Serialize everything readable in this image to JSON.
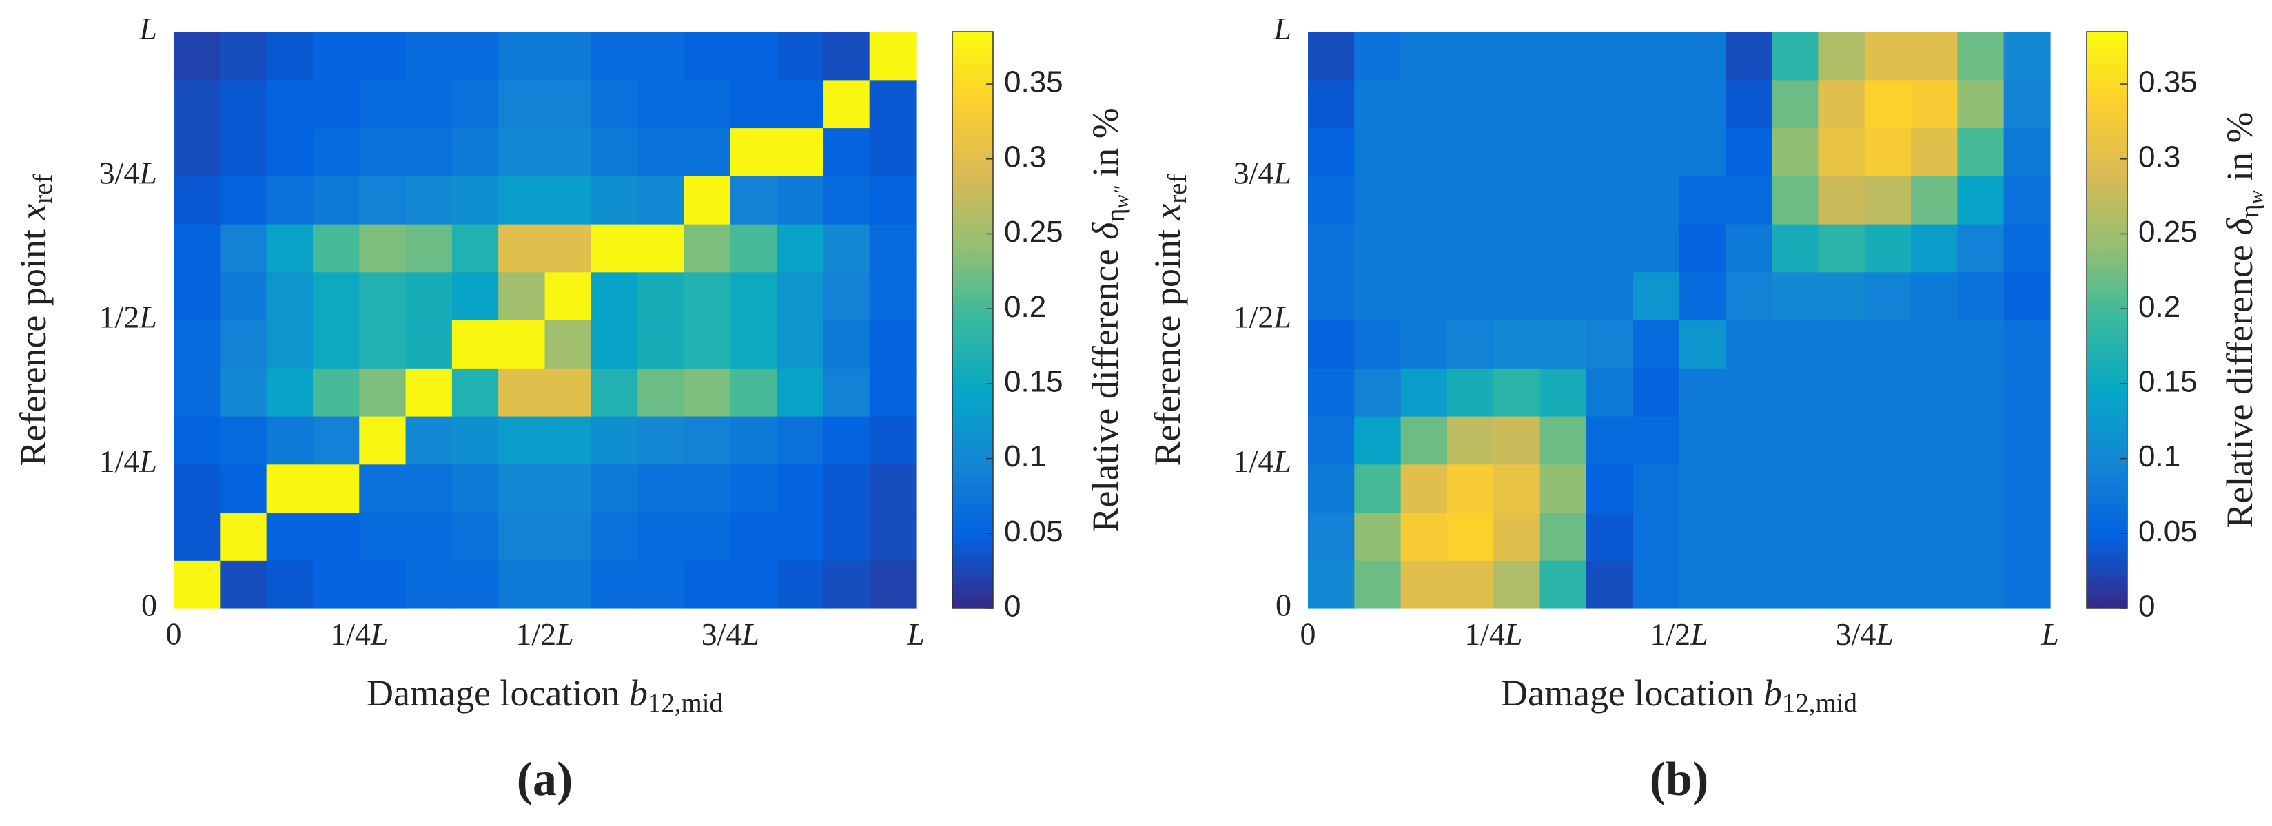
{
  "chart_data": [
    {
      "type": "heatmap",
      "panel": "(a)",
      "xlabel": {
        "text": "Damage location ",
        "symbol": "b",
        "subscript": "12,mid"
      },
      "ylabel": {
        "text": "Reference point ",
        "symbol": "x",
        "subscript": "ref"
      },
      "colorbar_label": {
        "text": "Relative difference ",
        "symbol": "δ",
        "subscript": "η",
        "subsubscript": "w″",
        "suffix": " in %"
      },
      "xlim": [
        0,
        1
      ],
      "ylim": [
        0,
        1
      ],
      "xticks": [
        0,
        {
          "value": 0.25,
          "label": "1/4L"
        },
        {
          "value": 0.5,
          "label": "1/2L"
        },
        {
          "value": 0.75,
          "label": "3/4L"
        },
        {
          "value": 1,
          "label": "L"
        }
      ],
      "yticks": [
        0,
        {
          "value": 0.25,
          "label": "1/4L"
        },
        {
          "value": 0.5,
          "label": "1/2L"
        },
        {
          "value": 0.75,
          "label": "3/4L"
        },
        {
          "value": 1,
          "label": "L"
        }
      ],
      "clim": [
        0,
        0.385
      ],
      "cticks": [
        0,
        0.05,
        0.1,
        0.15,
        0.2,
        0.25,
        0.3,
        0.35
      ],
      "colormap": "parula",
      "x": [
        0.03125,
        0.09375,
        0.15625,
        0.21875,
        0.28125,
        0.34375,
        0.40625,
        0.46875,
        0.53125,
        0.59375,
        0.65625,
        0.71875,
        0.78125,
        0.84375,
        0.90625,
        0.96875
      ],
      "y": [
        0.0417,
        0.125,
        0.2083,
        0.2917,
        0.375,
        0.4583,
        0.5417,
        0.625,
        0.7083,
        0.7917,
        0.875,
        0.9583
      ],
      "z": [
        [
          0.38,
          0.03,
          0.04,
          0.05,
          0.05,
          0.06,
          0.06,
          0.08,
          0.08,
          0.06,
          0.06,
          0.05,
          0.05,
          0.04,
          0.03,
          0.02
        ],
        [
          0.04,
          0.38,
          0.05,
          0.05,
          0.06,
          0.06,
          0.07,
          0.09,
          0.09,
          0.07,
          0.06,
          0.06,
          0.05,
          0.05,
          0.04,
          0.03
        ],
        [
          0.04,
          0.05,
          0.38,
          0.38,
          0.07,
          0.07,
          0.08,
          0.1,
          0.1,
          0.08,
          0.07,
          0.07,
          0.06,
          0.05,
          0.04,
          0.03
        ],
        [
          0.05,
          0.06,
          0.08,
          0.09,
          0.38,
          0.1,
          0.11,
          0.13,
          0.13,
          0.11,
          0.1,
          0.09,
          0.08,
          0.07,
          0.05,
          0.04
        ],
        [
          0.06,
          0.1,
          0.14,
          0.2,
          0.23,
          0.38,
          0.17,
          0.3,
          0.3,
          0.17,
          0.22,
          0.23,
          0.2,
          0.14,
          0.09,
          0.05
        ],
        [
          0.06,
          0.09,
          0.12,
          0.15,
          0.17,
          0.16,
          0.38,
          0.38,
          0.25,
          0.14,
          0.16,
          0.17,
          0.15,
          0.12,
          0.08,
          0.05
        ],
        [
          0.05,
          0.08,
          0.12,
          0.15,
          0.17,
          0.16,
          0.14,
          0.25,
          0.38,
          0.14,
          0.16,
          0.17,
          0.15,
          0.12,
          0.09,
          0.06
        ],
        [
          0.05,
          0.09,
          0.14,
          0.2,
          0.23,
          0.22,
          0.17,
          0.3,
          0.3,
          0.38,
          0.38,
          0.23,
          0.2,
          0.14,
          0.1,
          0.06
        ],
        [
          0.04,
          0.05,
          0.07,
          0.08,
          0.09,
          0.1,
          0.11,
          0.13,
          0.13,
          0.11,
          0.1,
          0.38,
          0.09,
          0.08,
          0.06,
          0.05
        ],
        [
          0.03,
          0.04,
          0.05,
          0.06,
          0.07,
          0.07,
          0.08,
          0.1,
          0.1,
          0.08,
          0.07,
          0.07,
          0.38,
          0.38,
          0.05,
          0.04
        ],
        [
          0.03,
          0.04,
          0.05,
          0.05,
          0.06,
          0.06,
          0.07,
          0.09,
          0.09,
          0.07,
          0.06,
          0.06,
          0.05,
          0.05,
          0.38,
          0.04
        ],
        [
          0.02,
          0.03,
          0.04,
          0.05,
          0.05,
          0.06,
          0.06,
          0.08,
          0.08,
          0.06,
          0.06,
          0.05,
          0.05,
          0.04,
          0.03,
          0.38
        ]
      ]
    },
    {
      "type": "heatmap",
      "panel": "(b)",
      "xlabel": {
        "text": "Damage location ",
        "symbol": "b",
        "subscript": "12,mid"
      },
      "ylabel": {
        "text": "Reference point ",
        "symbol": "x",
        "subscript": "ref"
      },
      "colorbar_label": {
        "text": "Relative difference ",
        "symbol": "δ",
        "subscript": "η",
        "subsubscript": "w",
        "suffix": " in %"
      },
      "xlim": [
        0,
        1
      ],
      "ylim": [
        0,
        1
      ],
      "xticks": [
        0,
        {
          "value": 0.25,
          "label": "1/4L"
        },
        {
          "value": 0.5,
          "label": "1/2L"
        },
        {
          "value": 0.75,
          "label": "3/4L"
        },
        {
          "value": 1,
          "label": "L"
        }
      ],
      "yticks": [
        0,
        {
          "value": 0.25,
          "label": "1/4L"
        },
        {
          "value": 0.5,
          "label": "1/2L"
        },
        {
          "value": 0.75,
          "label": "3/4L"
        },
        {
          "value": 1,
          "label": "L"
        }
      ],
      "clim": [
        0,
        0.385
      ],
      "cticks": [
        0,
        0.05,
        0.1,
        0.15,
        0.2,
        0.25,
        0.3,
        0.35
      ],
      "colormap": "parula",
      "x": [
        0.03125,
        0.09375,
        0.15625,
        0.21875,
        0.28125,
        0.34375,
        0.40625,
        0.46875,
        0.53125,
        0.59375,
        0.65625,
        0.71875,
        0.78125,
        0.84375,
        0.90625,
        0.96875
      ],
      "y": [
        0.0417,
        0.125,
        0.2083,
        0.2917,
        0.375,
        0.4583,
        0.5417,
        0.625,
        0.7083,
        0.7917,
        0.875,
        0.9583
      ],
      "z": [
        [
          0.1,
          0.22,
          0.3,
          0.3,
          0.26,
          0.18,
          0.03,
          0.07,
          0.08,
          0.08,
          0.08,
          0.08,
          0.08,
          0.08,
          0.08,
          0.07
        ],
        [
          0.09,
          0.24,
          0.33,
          0.34,
          0.3,
          0.22,
          0.04,
          0.07,
          0.08,
          0.08,
          0.08,
          0.08,
          0.08,
          0.08,
          0.08,
          0.07
        ],
        [
          0.08,
          0.2,
          0.3,
          0.33,
          0.31,
          0.24,
          0.05,
          0.07,
          0.08,
          0.08,
          0.08,
          0.08,
          0.08,
          0.08,
          0.08,
          0.07
        ],
        [
          0.07,
          0.14,
          0.22,
          0.27,
          0.28,
          0.22,
          0.06,
          0.06,
          0.08,
          0.08,
          0.08,
          0.08,
          0.08,
          0.08,
          0.08,
          0.07
        ],
        [
          0.06,
          0.09,
          0.13,
          0.16,
          0.18,
          0.16,
          0.08,
          0.05,
          0.08,
          0.08,
          0.08,
          0.08,
          0.08,
          0.08,
          0.08,
          0.07
        ],
        [
          0.05,
          0.07,
          0.08,
          0.09,
          0.1,
          0.1,
          0.09,
          0.06,
          0.12,
          0.08,
          0.08,
          0.08,
          0.08,
          0.08,
          0.08,
          0.07
        ],
        [
          0.07,
          0.08,
          0.08,
          0.08,
          0.08,
          0.08,
          0.08,
          0.12,
          0.06,
          0.09,
          0.1,
          0.1,
          0.09,
          0.08,
          0.07,
          0.05
        ],
        [
          0.07,
          0.08,
          0.08,
          0.08,
          0.08,
          0.08,
          0.08,
          0.08,
          0.05,
          0.08,
          0.16,
          0.18,
          0.16,
          0.13,
          0.09,
          0.06
        ],
        [
          0.06,
          0.08,
          0.08,
          0.08,
          0.08,
          0.08,
          0.08,
          0.08,
          0.06,
          0.06,
          0.22,
          0.28,
          0.27,
          0.22,
          0.14,
          0.07
        ],
        [
          0.05,
          0.08,
          0.08,
          0.08,
          0.08,
          0.08,
          0.08,
          0.08,
          0.08,
          0.05,
          0.24,
          0.31,
          0.33,
          0.3,
          0.2,
          0.08
        ],
        [
          0.04,
          0.08,
          0.08,
          0.08,
          0.08,
          0.08,
          0.08,
          0.08,
          0.08,
          0.04,
          0.22,
          0.3,
          0.34,
          0.33,
          0.24,
          0.09
        ],
        [
          0.03,
          0.07,
          0.08,
          0.08,
          0.08,
          0.08,
          0.08,
          0.08,
          0.08,
          0.03,
          0.18,
          0.26,
          0.3,
          0.3,
          0.22,
          0.1
        ]
      ]
    }
  ]
}
